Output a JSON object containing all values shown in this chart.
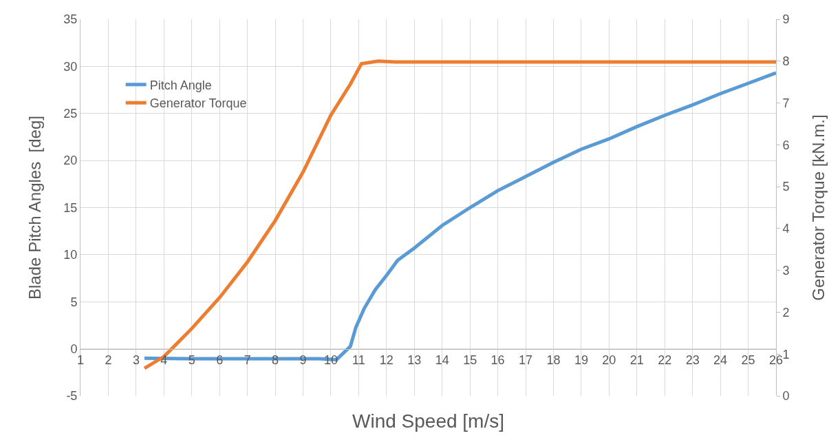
{
  "chart_data": {
    "type": "line",
    "xlabel": "Wind Speed [m/s]",
    "ylabel": "Blade Pitch Angles  [deg]",
    "y2label": "Generator Torque [kN.m.]",
    "xlim": [
      1,
      26
    ],
    "xticks": [
      1,
      2,
      3,
      4,
      5,
      6,
      7,
      8,
      9,
      10,
      11,
      12,
      13,
      14,
      15,
      16,
      17,
      18,
      19,
      20,
      21,
      22,
      23,
      24,
      25,
      26
    ],
    "ylim": [
      -5,
      35
    ],
    "yticks": [
      -5,
      0,
      5,
      10,
      15,
      20,
      25,
      30,
      35
    ],
    "y2lim": [
      0,
      9
    ],
    "y2ticks": [
      0,
      1,
      2,
      3,
      4,
      5,
      6,
      7,
      8,
      9
    ],
    "grid": true,
    "legend": "top left",
    "marker": "none",
    "line_style": "solid",
    "series": [
      {
        "name": "Pitch Angle",
        "color": "#5b9bd5",
        "x": [
          3.3,
          5,
          7,
          9,
          9.6,
          10.2,
          10.7,
          10.9,
          11.2,
          11.6,
          12,
          12.4,
          13,
          14,
          15,
          16,
          17,
          18,
          19,
          20,
          21,
          22,
          23,
          24,
          25,
          26
        ],
        "values": [
          -1,
          -1.05,
          -1.05,
          -1.05,
          -1.05,
          -1.15,
          0.26,
          2.3,
          4.3,
          6.3,
          7.8,
          9.4,
          10.7,
          13.1,
          15,
          16.8,
          18.3,
          19.8,
          21.2,
          22.3,
          23.6,
          24.8,
          25.9,
          27.1,
          28.2,
          29.3
        ]
      },
      {
        "name": "Generator Torque",
        "color": "#ed7d31",
        "axis": "y2",
        "x": [
          3.3,
          4,
          5,
          6,
          7,
          8,
          9,
          10,
          10.7,
          11.1,
          11.7,
          12.3,
          26
        ],
        "values": [
          0.66,
          0.94,
          1.61,
          2.35,
          3.2,
          4.19,
          5.35,
          6.71,
          7.45,
          7.94,
          8,
          7.98,
          7.98
        ]
      }
    ]
  }
}
